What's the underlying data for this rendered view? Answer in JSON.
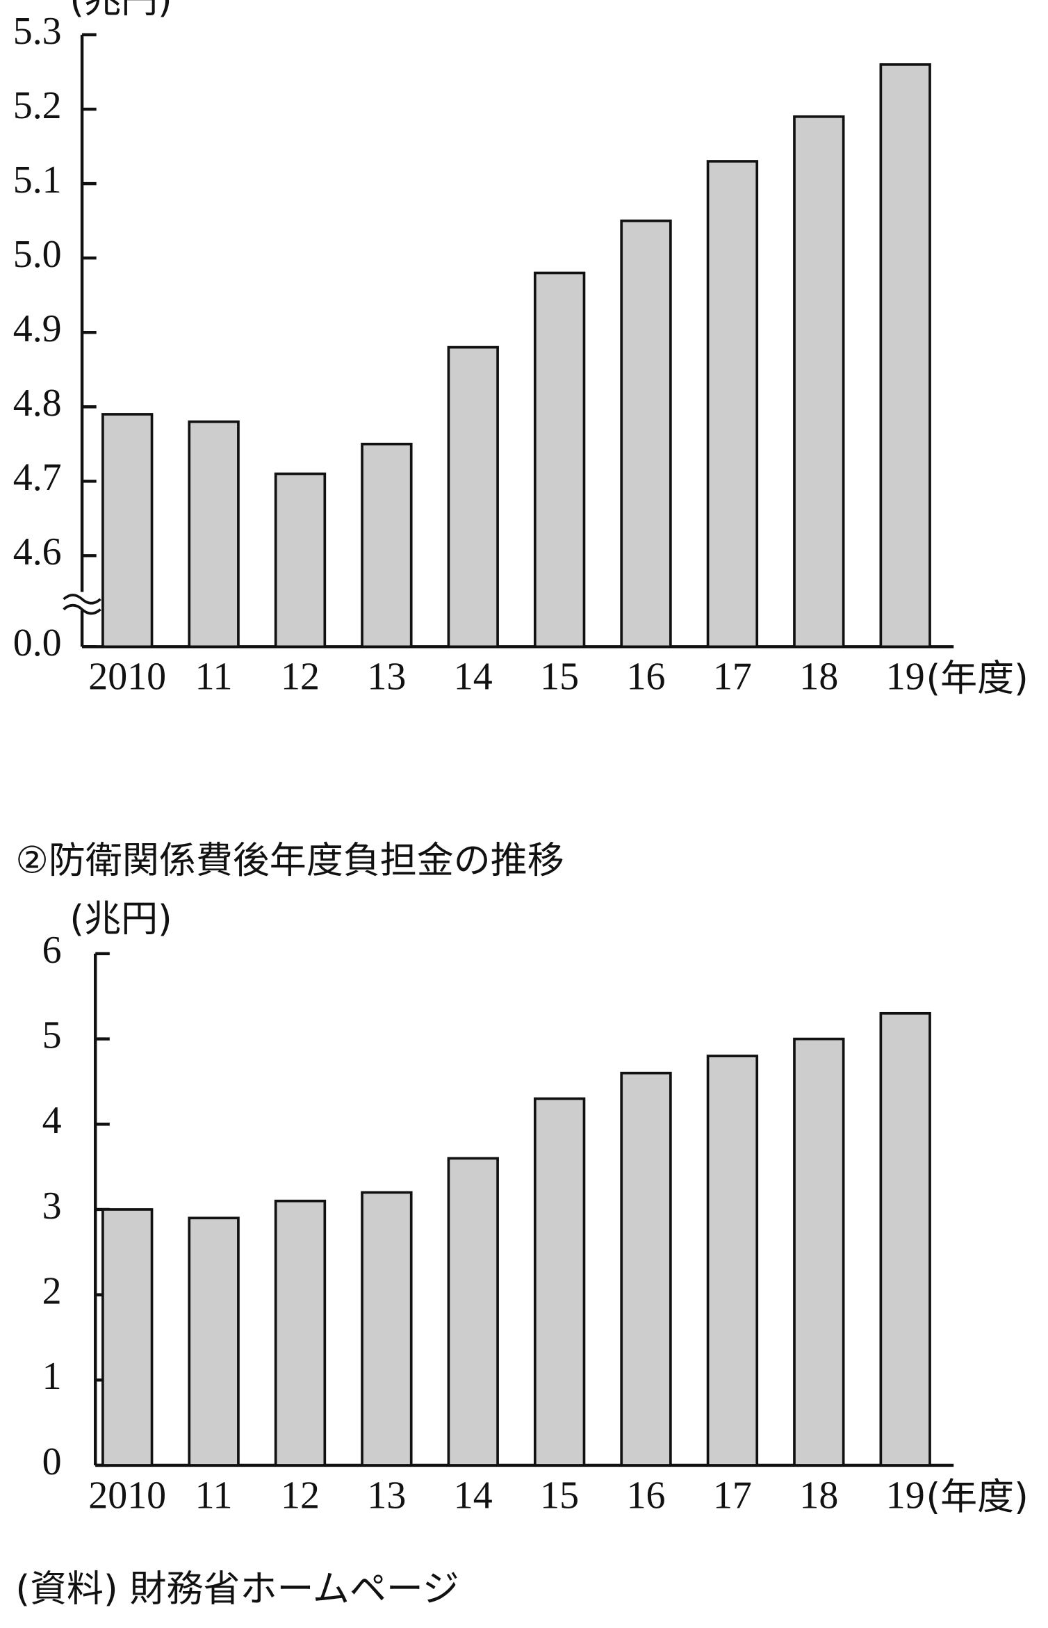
{
  "chart_data": [
    {
      "type": "bar",
      "y_label": "(兆円)",
      "x_label": "(年度)",
      "categories": [
        "2010",
        "11",
        "12",
        "13",
        "14",
        "15",
        "16",
        "17",
        "18",
        "19"
      ],
      "values": [
        4.79,
        4.78,
        4.71,
        4.75,
        4.88,
        4.98,
        5.05,
        5.13,
        5.19,
        5.26
      ],
      "color": "#cdcdcd",
      "ylim": [
        0,
        5.3
      ],
      "axis_break": [
        0,
        4.6
      ],
      "yticks": [
        {
          "value": 0,
          "label": "0.0"
        },
        4.6,
        4.7,
        4.8,
        4.9,
        {
          "value": 5,
          "label": "5.0"
        },
        5.1,
        5.2,
        5.3
      ],
      "grid": false
    },
    {
      "type": "bar",
      "title": "②防衛関係費後年度負担金の推移",
      "y_label": "(兆円)",
      "x_label": "(年度)",
      "categories": [
        "2010",
        "11",
        "12",
        "13",
        "14",
        "15",
        "16",
        "17",
        "18",
        "19"
      ],
      "values": [
        3.0,
        2.9,
        3.1,
        3.2,
        3.6,
        4.3,
        4.6,
        4.8,
        5.0,
        5.3
      ],
      "color": "#cdcdcd",
      "ylim": [
        0,
        6
      ],
      "yticks": [
        0,
        1,
        2,
        3,
        4,
        5,
        6
      ],
      "grid": false
    }
  ],
  "source": "(資料) 財務省ホームページ"
}
